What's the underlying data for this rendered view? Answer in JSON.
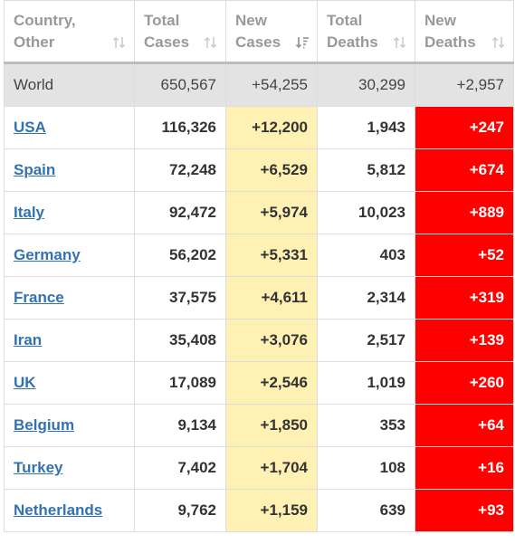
{
  "header": {
    "country": [
      "Country,",
      "Other"
    ],
    "total_cases": [
      "Total",
      "Cases"
    ],
    "new_cases": [
      "New",
      "Cases"
    ],
    "total_deaths": [
      "Total",
      "Deaths"
    ],
    "new_deaths": [
      "New",
      "Deaths"
    ]
  },
  "world": {
    "name": "World",
    "total_cases": "650,567",
    "new_cases": "+54,255",
    "total_deaths": "30,299",
    "new_deaths": "+2,957"
  },
  "rows": [
    {
      "name": "USA",
      "total_cases": "116,326",
      "new_cases": "+12,200",
      "total_deaths": "1,943",
      "new_deaths": "+247"
    },
    {
      "name": "Spain",
      "total_cases": "72,248",
      "new_cases": "+6,529",
      "total_deaths": "5,812",
      "new_deaths": "+674"
    },
    {
      "name": "Italy",
      "total_cases": "92,472",
      "new_cases": "+5,974",
      "total_deaths": "10,023",
      "new_deaths": "+889"
    },
    {
      "name": "Germany",
      "total_cases": "56,202",
      "new_cases": "+5,331",
      "total_deaths": "403",
      "new_deaths": "+52"
    },
    {
      "name": "France",
      "total_cases": "37,575",
      "new_cases": "+4,611",
      "total_deaths": "2,314",
      "new_deaths": "+319"
    },
    {
      "name": "Iran",
      "total_cases": "35,408",
      "new_cases": "+3,076",
      "total_deaths": "2,517",
      "new_deaths": "+139"
    },
    {
      "name": "UK",
      "total_cases": "17,089",
      "new_cases": "+2,546",
      "total_deaths": "1,019",
      "new_deaths": "+260"
    },
    {
      "name": "Belgium",
      "total_cases": "9,134",
      "new_cases": "+1,850",
      "total_deaths": "353",
      "new_deaths": "+64"
    },
    {
      "name": "Turkey",
      "total_cases": "7,402",
      "new_cases": "+1,704",
      "total_deaths": "108",
      "new_deaths": "+16"
    },
    {
      "name": "Netherlands",
      "total_cases": "9,762",
      "new_cases": "+1,159",
      "total_deaths": "639",
      "new_deaths": "+93"
    }
  ],
  "colors": {
    "link": "#3372b1",
    "new_cases_bg": "#fff0b3",
    "new_deaths_bg": "#ff0000",
    "world_bg": "#e3e3e3",
    "header_text": "#999999"
  },
  "icons": {
    "sort_unsorted": "sort-arrows-icon",
    "sort_descending": "sort-descending-icon"
  }
}
